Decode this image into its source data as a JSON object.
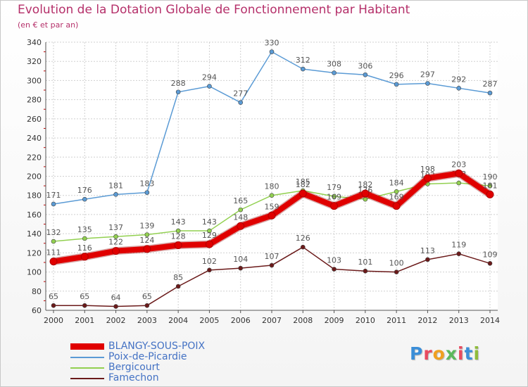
{
  "header": {
    "title": "Evolution de la Dotation Globale de Fonctionnement par Habitant",
    "subtitle": "(en € et par an)"
  },
  "logo": {
    "text": "Proxiti"
  },
  "chart_data": {
    "type": "line",
    "title": "Evolution de la Dotation Globale de Fonctionnement par Habitant",
    "subtitle": "(en € et par an)",
    "xlabel": "",
    "ylabel": "",
    "x": [
      "2000",
      "2001",
      "2002",
      "2003",
      "2004",
      "2005",
      "2006",
      "2007",
      "2008",
      "2009",
      "2010",
      "2011",
      "2012",
      "2013",
      "2014"
    ],
    "ylim": [
      60,
      340
    ],
    "yticks": [
      60,
      80,
      100,
      120,
      140,
      160,
      180,
      200,
      220,
      240,
      260,
      280,
      300,
      320,
      340
    ],
    "grid": true,
    "legend_position": "bottom-left",
    "series": [
      {
        "name": "Poix-de-Picardie",
        "color": "#5b9bd5",
        "values": [
          171,
          176,
          181,
          183,
          288,
          294,
          277,
          330,
          312,
          308,
          306,
          296,
          297,
          292,
          287
        ]
      },
      {
        "name": "Bergicourt",
        "color": "#92d050",
        "values": [
          132,
          135,
          137,
          139,
          143,
          143,
          165,
          180,
          185,
          179,
          176,
          184,
          192,
          193,
          190
        ]
      },
      {
        "name": "Famechon",
        "color": "#6b1a1a",
        "values": [
          65,
          65,
          64,
          65,
          85,
          102,
          104,
          107,
          126,
          103,
          101,
          100,
          113,
          119,
          109
        ]
      },
      {
        "name": "BLANGY-SOUS-POIX",
        "color": "#e00000",
        "values": [
          111,
          116,
          122,
          124,
          128,
          129,
          148,
          159,
          182,
          169,
          182,
          169,
          198,
          203,
          181
        ]
      }
    ],
    "legend_order": [
      "BLANGY-SOUS-POIX",
      "Poix-de-Picardie",
      "Bergicourt",
      "Famechon"
    ]
  }
}
